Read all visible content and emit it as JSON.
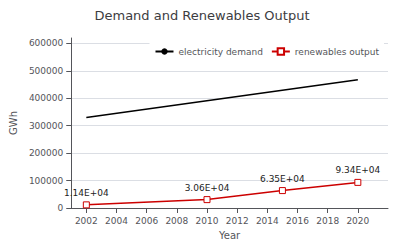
{
  "chart_data": {
    "type": "line",
    "title": "Demand and Renewables Output",
    "xlabel": "Year",
    "ylabel": "GWh",
    "series": [
      {
        "name": "electricity demand",
        "color": "#000000",
        "marker": "none",
        "x": [
          2002,
          2020
        ],
        "values": [
          330000,
          468000
        ]
      },
      {
        "name": "renewables output",
        "color": "#cc0000",
        "marker": "square",
        "x": [
          2002,
          2010,
          2015,
          2020
        ],
        "values": [
          11400,
          30600,
          63500,
          93400
        ],
        "data_labels": true,
        "value_labels": [
          "1.14E+04",
          "3.06E+04",
          "6.35E+04",
          "9.34E+04"
        ]
      }
    ],
    "xlim": [
      2001,
      2022
    ],
    "xticks": [
      2002,
      2004,
      2006,
      2008,
      2010,
      2012,
      2014,
      2016,
      2018,
      2020
    ],
    "ylim": [
      0,
      620000
    ],
    "yticks": [
      0,
      100000,
      200000,
      300000,
      400000,
      500000,
      600000
    ],
    "grid": true,
    "legend": "upper right"
  }
}
